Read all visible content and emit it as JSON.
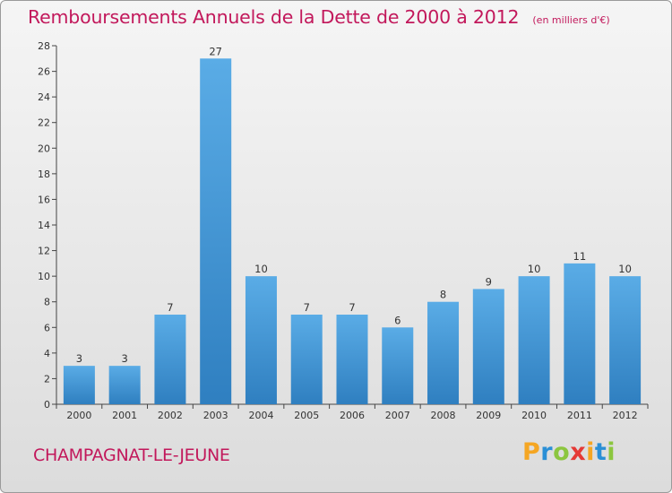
{
  "header": {
    "title": "Remboursements Annuels de la Dette de 2000 à 2012",
    "subtitle": "(en milliers d'€)"
  },
  "footer": {
    "commune": "CHAMPAGNAT-LE-JEUNE",
    "brand_text": "Proxiti",
    "brand_letters": [
      {
        "char": "P",
        "color": "#f5a623"
      },
      {
        "char": "r",
        "color": "#2a8fd6"
      },
      {
        "char": "o",
        "color": "#8cc63f"
      },
      {
        "char": "x",
        "color": "#e53935"
      },
      {
        "char": "i",
        "color": "#f5a623"
      },
      {
        "char": "t",
        "color": "#2a8fd6"
      },
      {
        "char": "i",
        "color": "#8cc63f"
      }
    ]
  },
  "colors": {
    "title": "#c2185b",
    "bar_light": "#5aace6",
    "bar_dark": "#2f7fc0",
    "axis": "#333333",
    "grid": "#aaaaaa"
  },
  "chart_data": {
    "type": "bar",
    "title": "Remboursements Annuels de la Dette de 2000 à 2012",
    "subtitle": "(en milliers d'€)",
    "categories": [
      "2000",
      "2001",
      "2002",
      "2003",
      "2004",
      "2005",
      "2006",
      "2007",
      "2008",
      "2009",
      "2010",
      "2011",
      "2012"
    ],
    "values": [
      3,
      3,
      7,
      27,
      10,
      7,
      7,
      6,
      8,
      9,
      10,
      11,
      10
    ],
    "ylim": [
      0,
      28
    ],
    "yticks": [
      0,
      2,
      4,
      6,
      8,
      10,
      12,
      14,
      16,
      18,
      20,
      22,
      24,
      26,
      28
    ],
    "grid": false,
    "legend": "none"
  }
}
